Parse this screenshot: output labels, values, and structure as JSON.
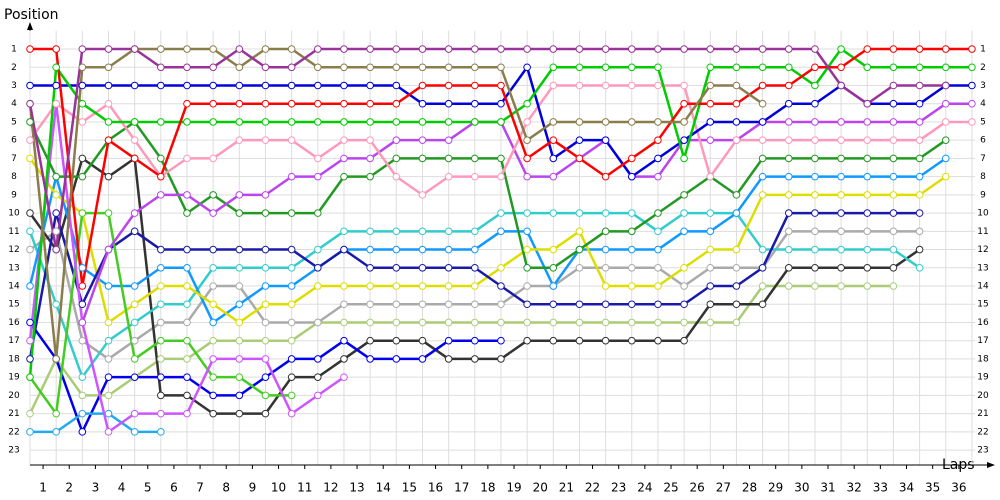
{
  "chart_data": {
    "type": "line",
    "y_label": "Position",
    "x_label": "Laps",
    "x": [
      0,
      1,
      2,
      3,
      4,
      5,
      6,
      7,
      8,
      9,
      10,
      11,
      12,
      13,
      14,
      15,
      16,
      17,
      18,
      19,
      20,
      21,
      22,
      23,
      24,
      25,
      26,
      27,
      28,
      29,
      30,
      31,
      32,
      33,
      34,
      35,
      36
    ],
    "xlim": [
      0,
      36.5
    ],
    "xticks": [
      {
        "value": 0.5,
        "label": "1"
      },
      {
        "value": 1.5,
        "label": "2"
      },
      {
        "value": 2.5,
        "label": "3"
      },
      {
        "value": 3.5,
        "label": "4"
      },
      {
        "value": 4.5,
        "label": "5"
      },
      {
        "value": 5.5,
        "label": "6"
      },
      {
        "value": 6.5,
        "label": "7"
      },
      {
        "value": 7.5,
        "label": "8"
      },
      {
        "value": 8.5,
        "label": "9"
      },
      {
        "value": 9.5,
        "label": "10"
      },
      {
        "value": 10.5,
        "label": "11"
      },
      {
        "value": 11.5,
        "label": "12"
      },
      {
        "value": 12.5,
        "label": "13"
      },
      {
        "value": 13.5,
        "label": "14"
      },
      {
        "value": 14.5,
        "label": "15"
      },
      {
        "value": 15.5,
        "label": "16"
      },
      {
        "value": 16.5,
        "label": "17"
      },
      {
        "value": 17.5,
        "label": "18"
      },
      {
        "value": 18.5,
        "label": "19"
      },
      {
        "value": 19.5,
        "label": "20"
      },
      {
        "value": 20.5,
        "label": "21"
      },
      {
        "value": 21.5,
        "label": "22"
      },
      {
        "value": 22.5,
        "label": "23"
      },
      {
        "value": 23.5,
        "label": "24"
      },
      {
        "value": 24.5,
        "label": "25"
      },
      {
        "value": 25.5,
        "label": "26"
      },
      {
        "value": 26.5,
        "label": "27"
      },
      {
        "value": 27.5,
        "label": "28"
      },
      {
        "value": 28.5,
        "label": "29"
      },
      {
        "value": 29.5,
        "label": "30"
      },
      {
        "value": 30.5,
        "label": "31"
      },
      {
        "value": 31.5,
        "label": "32"
      },
      {
        "value": 32.5,
        "label": "33"
      },
      {
        "value": 33.5,
        "label": "34"
      },
      {
        "value": 34.5,
        "label": "35"
      },
      {
        "value": 35.5,
        "label": "36"
      }
    ],
    "ylim": [
      0,
      24
    ],
    "y_reversed": true,
    "yticks": [
      1,
      2,
      3,
      4,
      5,
      6,
      7,
      8,
      9,
      10,
      11,
      12,
      13,
      14,
      15,
      16,
      17,
      18,
      19,
      20,
      21,
      22,
      23
    ],
    "grid": true,
    "series": [
      {
        "color": "#aacc77",
        "values": [
          21,
          18,
          20,
          20,
          19,
          18,
          18,
          17,
          17,
          17,
          17,
          16,
          16,
          16,
          16,
          16,
          16,
          16,
          16,
          16,
          16,
          16,
          16,
          16,
          16,
          16,
          16,
          16,
          14,
          14,
          14,
          14,
          14,
          14,
          null,
          null,
          null
        ]
      },
      {
        "color": "#aaaaaa",
        "values": [
          12,
          11,
          17,
          18,
          17,
          16,
          16,
          14,
          14,
          16,
          16,
          16,
          15,
          15,
          15,
          15,
          15,
          15,
          15,
          14,
          14,
          13,
          13,
          13,
          13,
          14,
          13,
          13,
          13,
          11,
          11,
          11,
          11,
          11,
          11,
          null,
          null
        ]
      },
      {
        "color": "#333333",
        "values": [
          10,
          12,
          7,
          8,
          7,
          20,
          20,
          21,
          21,
          21,
          19,
          19,
          18,
          17,
          17,
          17,
          18,
          18,
          18,
          17,
          17,
          17,
          17,
          17,
          17,
          17,
          15,
          15,
          15,
          13,
          13,
          13,
          13,
          13,
          12,
          null,
          null
        ]
      },
      {
        "color": "#33cccc",
        "values": [
          11,
          15,
          19,
          17,
          16,
          15,
          15,
          13,
          13,
          13,
          13,
          12,
          11,
          11,
          11,
          11,
          11,
          11,
          10,
          10,
          10,
          10,
          10,
          10,
          11,
          10,
          10,
          10,
          12,
          12,
          12,
          12,
          12,
          12,
          13,
          null,
          null
        ]
      },
      {
        "color": "#1199ff",
        "values": [
          14,
          8,
          13,
          14,
          14,
          13,
          13,
          16,
          15,
          14,
          14,
          13,
          12,
          12,
          12,
          12,
          12,
          12,
          11,
          11,
          14,
          12,
          12,
          12,
          12,
          11,
          11,
          10,
          8,
          8,
          8,
          8,
          8,
          8,
          8,
          7,
          null
        ]
      },
      {
        "color": "#dddd00",
        "values": [
          7,
          9,
          10,
          16,
          15,
          14,
          14,
          15,
          16,
          15,
          15,
          14,
          14,
          14,
          14,
          14,
          14,
          14,
          13,
          12,
          12,
          11,
          14,
          14,
          14,
          13,
          12,
          12,
          9,
          9,
          9,
          9,
          9,
          9,
          9,
          8,
          null
        ]
      },
      {
        "color": "#1a1aaa",
        "values": [
          18,
          10,
          15,
          12,
          11,
          12,
          12,
          12,
          12,
          12,
          12,
          13,
          12,
          13,
          13,
          13,
          13,
          13,
          14,
          15,
          15,
          15,
          15,
          15,
          15,
          15,
          14,
          14,
          13,
          10,
          10,
          10,
          10,
          10,
          10,
          null,
          null
        ]
      },
      {
        "color": "#0000ee",
        "values": [
          16,
          18,
          22,
          19,
          19,
          19,
          19,
          20,
          20,
          19,
          18,
          18,
          17,
          18,
          18,
          18,
          17,
          17,
          17,
          null,
          null,
          null,
          null,
          null,
          null,
          null,
          null,
          null,
          null,
          null,
          null,
          null,
          null,
          null,
          null,
          null,
          null
        ]
      },
      {
        "color": "#44cc22",
        "values": [
          19,
          21,
          10,
          10,
          18,
          17,
          17,
          19,
          19,
          20,
          20,
          null,
          null,
          null,
          null,
          null,
          null,
          null,
          null,
          null,
          null,
          null,
          null,
          null,
          null,
          null,
          null,
          null,
          null,
          null,
          null,
          null,
          null,
          null,
          null,
          null,
          null
        ]
      },
      {
        "color": "#22aaee",
        "values": [
          22,
          22,
          21,
          21,
          22,
          22,
          null,
          null,
          null,
          null,
          null,
          null,
          null,
          null,
          null,
          null,
          null,
          null,
          null,
          null,
          null,
          null,
          null,
          null,
          null,
          null,
          null,
          null,
          null,
          null,
          null,
          null,
          null,
          null,
          null,
          null,
          null
        ]
      },
      {
        "color": "#cc55ff",
        "values": [
          17,
          4,
          16,
          22,
          21,
          21,
          21,
          18,
          18,
          18,
          21,
          20,
          19,
          null,
          null,
          null,
          null,
          null,
          null,
          null,
          null,
          null,
          null,
          null,
          null,
          null,
          null,
          null,
          null,
          null,
          null,
          null,
          null,
          null,
          null,
          null,
          null
        ]
      },
      {
        "color": "#229922",
        "values": [
          5,
          8,
          8,
          6,
          5,
          7,
          10,
          9,
          10,
          10,
          10,
          10,
          8,
          8,
          7,
          7,
          7,
          7,
          7,
          13,
          13,
          12,
          11,
          11,
          10,
          9,
          8,
          9,
          7,
          7,
          7,
          7,
          7,
          7,
          7,
          6,
          null
        ]
      },
      {
        "color": "#bb44ee",
        "values": [
          null,
          null,
          16,
          12,
          10,
          9,
          9,
          10,
          9,
          9,
          8,
          8,
          7,
          7,
          6,
          6,
          6,
          5,
          5,
          8,
          8,
          7,
          6,
          8,
          8,
          6,
          6,
          6,
          5,
          5,
          5,
          5,
          5,
          5,
          5,
          4,
          4
        ]
      },
      {
        "color": "#ff99bb",
        "values": [
          6,
          4,
          5,
          4,
          6,
          8,
          7,
          7,
          6,
          6,
          6,
          7,
          6,
          6,
          8,
          9,
          8,
          8,
          8,
          5,
          3,
          3,
          3,
          3,
          3,
          3,
          8,
          6,
          6,
          6,
          6,
          6,
          6,
          6,
          6,
          5,
          5
        ]
      },
      {
        "color": "#0000dd",
        "values": [
          3,
          3,
          3,
          3,
          3,
          3,
          3,
          3,
          3,
          3,
          3,
          3,
          3,
          3,
          3,
          4,
          4,
          4,
          4,
          2,
          7,
          6,
          6,
          8,
          7,
          6,
          5,
          5,
          5,
          4,
          4,
          3,
          4,
          4,
          4,
          3,
          3
        ]
      },
      {
        "color": "#00cc00",
        "values": [
          19,
          2,
          4,
          5,
          5,
          5,
          5,
          5,
          5,
          5,
          5,
          5,
          5,
          5,
          5,
          5,
          5,
          5,
          5,
          4,
          2,
          2,
          2,
          2,
          2,
          7,
          2,
          2,
          2,
          2,
          3,
          1,
          2,
          2,
          2,
          2,
          2
        ]
      },
      {
        "color": "#ff0000",
        "values": [
          1,
          1,
          14,
          6,
          7,
          8,
          4,
          4,
          4,
          4,
          4,
          4,
          4,
          4,
          4,
          3,
          3,
          3,
          3,
          7,
          6,
          7,
          8,
          7,
          6,
          4,
          4,
          4,
          3,
          3,
          2,
          2,
          1,
          1,
          1,
          1,
          1
        ]
      },
      {
        "color": "#8b7d4b",
        "values": [
          4,
          18,
          2,
          2,
          1,
          1,
          1,
          1,
          2,
          1,
          1,
          2,
          2,
          2,
          2,
          2,
          2,
          2,
          2,
          6,
          5,
          5,
          5,
          5,
          5,
          5,
          3,
          3,
          4,
          null,
          null,
          null,
          null,
          null,
          null,
          null,
          null
        ]
      },
      {
        "color": "#993399",
        "values": [
          4,
          12,
          1,
          1,
          1,
          2,
          2,
          2,
          1,
          2,
          2,
          1,
          1,
          1,
          1,
          1,
          1,
          1,
          1,
          1,
          1,
          1,
          1,
          1,
          1,
          1,
          1,
          1,
          1,
          1,
          1,
          3,
          4,
          3,
          3,
          3,
          null
        ]
      }
    ]
  }
}
